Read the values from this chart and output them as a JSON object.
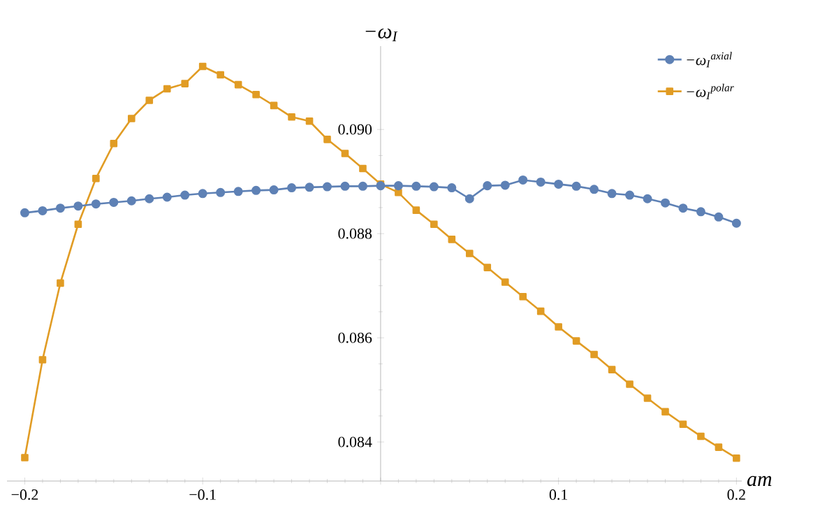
{
  "chart_data": {
    "type": "line",
    "xlabel": "am",
    "ylabel": "−ω$_{I}$",
    "x": [
      -0.2,
      -0.19,
      -0.18,
      -0.17,
      -0.16,
      -0.15,
      -0.14,
      -0.13,
      -0.12,
      -0.11,
      -0.1,
      -0.09,
      -0.08,
      -0.07,
      -0.06,
      -0.05,
      -0.04,
      -0.03,
      -0.02,
      -0.01,
      0,
      0.01,
      0.02,
      0.03,
      0.04,
      0.05,
      0.06,
      0.07,
      0.08,
      0.09,
      0.1,
      0.11,
      0.12,
      0.13,
      0.14,
      0.15,
      0.16,
      0.17,
      0.18,
      0.19,
      0.2
    ],
    "series": [
      {
        "name": "−ω$_{I}$$^{axial}$",
        "color": "#5e81b5",
        "marker": "circle",
        "values": [
          0.0884,
          0.08844,
          0.08849,
          0.08853,
          0.08857,
          0.0886,
          0.08863,
          0.08867,
          0.0887,
          0.08874,
          0.08877,
          0.08879,
          0.08881,
          0.08883,
          0.08884,
          0.08888,
          0.08889,
          0.0889,
          0.08891,
          0.08891,
          0.08892,
          0.08892,
          0.08891,
          0.0889,
          0.08888,
          0.08867,
          0.08892,
          0.08893,
          0.08903,
          0.08899,
          0.08895,
          0.08891,
          0.08885,
          0.08877,
          0.08874,
          0.08867,
          0.08859,
          0.08849,
          0.08842,
          0.08832,
          0.0882
        ]
      },
      {
        "name": "−ω$_{I}$$^{polar}$",
        "color": "#e19c24",
        "marker": "square",
        "values": [
          0.0837,
          0.08558,
          0.08705,
          0.08818,
          0.08906,
          0.08973,
          0.09021,
          0.09056,
          0.09078,
          0.09088,
          0.09121,
          0.09105,
          0.09086,
          0.09067,
          0.09046,
          0.09024,
          0.09016,
          0.08981,
          0.08954,
          0.08925,
          0.08895,
          0.08879,
          0.08845,
          0.08818,
          0.08789,
          0.08762,
          0.08735,
          0.08707,
          0.08679,
          0.08651,
          0.08621,
          0.08594,
          0.08568,
          0.08539,
          0.08511,
          0.08484,
          0.08458,
          0.08434,
          0.08411,
          0.0839,
          0.08369
        ]
      }
    ],
    "xlim": [
      -0.21,
      0.203
    ],
    "ylim": [
      0.08325,
      0.0916
    ],
    "xticks": [
      {
        "value": -0.2,
        "label": "−0.2"
      },
      {
        "value": -0.1,
        "label": "−0.1"
      },
      {
        "value": 0,
        "label": null
      },
      {
        "value": 0.1,
        "label": "0.1"
      },
      {
        "value": 0.2,
        "label": "0.2"
      }
    ],
    "yticks": [
      {
        "value": 0.084,
        "label": "0.084"
      },
      {
        "value": 0.086,
        "label": "0.086"
      },
      {
        "value": 0.088,
        "label": "0.088"
      },
      {
        "value": 0.09,
        "label": "0.090"
      }
    ],
    "legend": "top right"
  }
}
